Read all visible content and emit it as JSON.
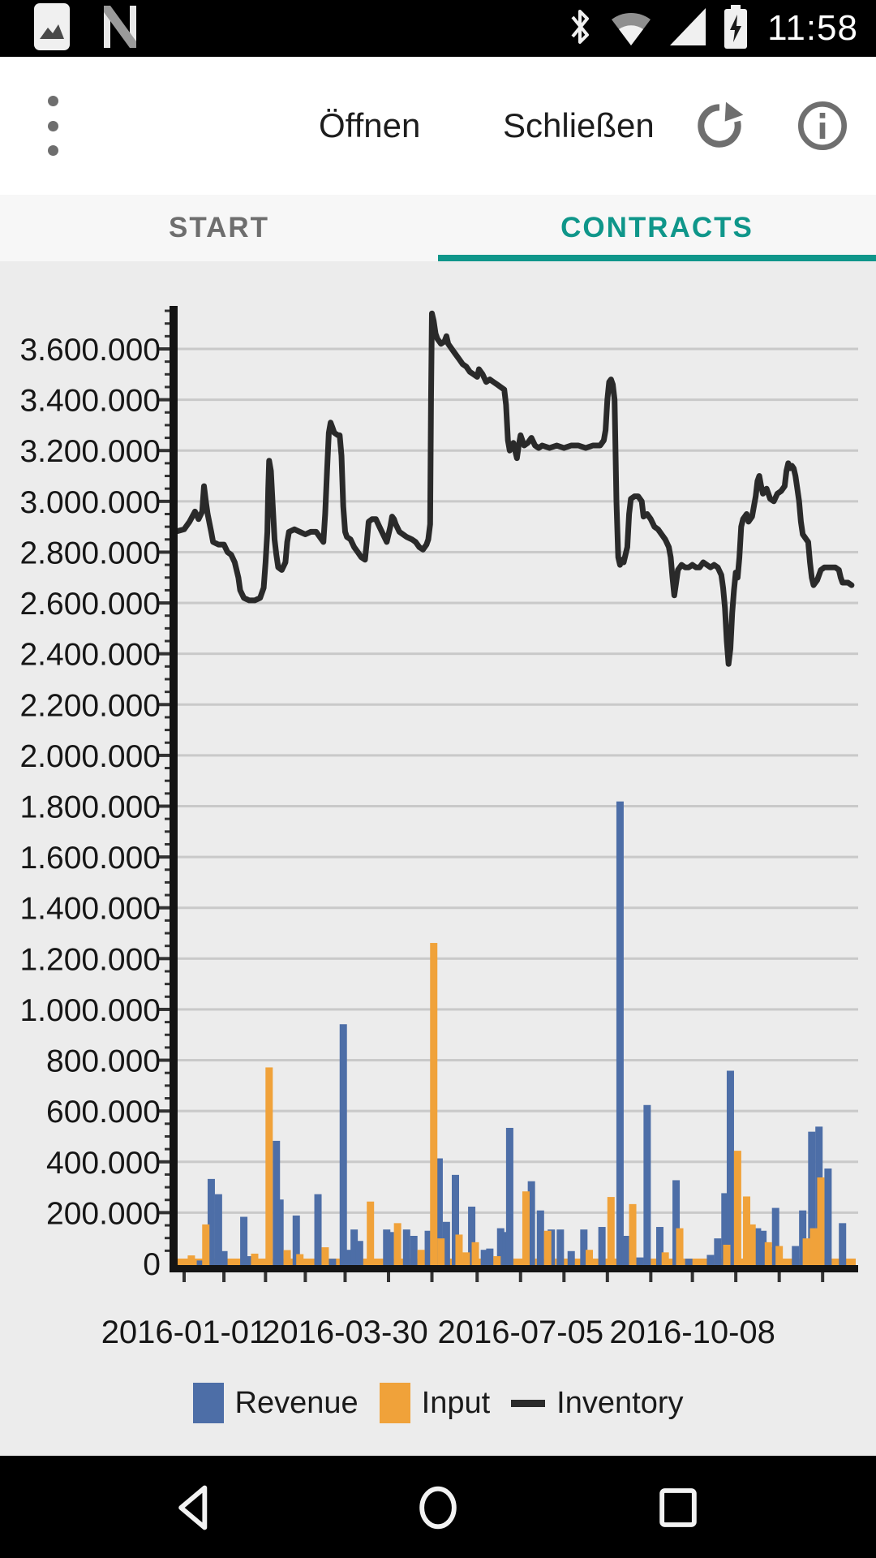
{
  "status_bar": {
    "time": "11:58",
    "left_icons": [
      "screenshot-notification",
      "android-n-notification"
    ],
    "right_icons": [
      "bluetooth",
      "wifi",
      "cell-signal",
      "battery-charging"
    ]
  },
  "toolbar": {
    "open_label": "Öffnen",
    "close_label": "Schließen",
    "icons": [
      "overflow-menu",
      "refresh",
      "info"
    ]
  },
  "tabs": {
    "accent_color": "#0f968a",
    "items": [
      {
        "label": "START",
        "active": false
      },
      {
        "label": "CONTRACTS",
        "active": true
      }
    ]
  },
  "legend": {
    "items": [
      {
        "label": "Revenue",
        "color": "#4d6ea7",
        "type": "bar"
      },
      {
        "label": "Input",
        "color": "#f0a23a",
        "type": "bar"
      },
      {
        "label": "Inventory",
        "color": "#2a2a2a",
        "type": "line"
      }
    ]
  },
  "navigation_bar": {
    "icons": [
      "back",
      "home",
      "recents"
    ]
  },
  "chart_data": {
    "type": "bar+line combo",
    "background": "#ececec",
    "grid": true,
    "colors": {
      "revenue": "#4d6ea7",
      "input": "#f0a23a",
      "inventory": "#2a2a2a",
      "gridline": "#c9c9c9",
      "axis": "#141414"
    },
    "y_axis": {
      "min": 0,
      "max_k": 3750,
      "tick_step_k": 200,
      "minor_step_k": 50,
      "labels": [
        {
          "v": 0,
          "label": "0"
        },
        {
          "v": 200,
          "label": "200.000"
        },
        {
          "v": 400,
          "label": "400.000"
        },
        {
          "v": 600,
          "label": "600.000"
        },
        {
          "v": 800,
          "label": "800.000"
        },
        {
          "v": 1000,
          "label": "1.000.000"
        },
        {
          "v": 1200,
          "label": "1.200.000"
        },
        {
          "v": 1400,
          "label": "1.400.000"
        },
        {
          "v": 1600,
          "label": "1.600.000"
        },
        {
          "v": 1800,
          "label": "1.800.000"
        },
        {
          "v": 2000,
          "label": "2.000.000"
        },
        {
          "v": 2200,
          "label": "2.200.000"
        },
        {
          "v": 2400,
          "label": "2.400.000"
        },
        {
          "v": 2600,
          "label": "2.600.000"
        },
        {
          "v": 2800,
          "label": "2.800.000"
        },
        {
          "v": 3000,
          "label": "3.000.000"
        },
        {
          "v": 3200,
          "label": "3.200.000"
        },
        {
          "v": 3400,
          "label": "3.400.000"
        },
        {
          "v": 3600,
          "label": "3.600.000"
        }
      ]
    },
    "x_axis": {
      "unit": "day offset from 2016-01-01",
      "labels": [
        {
          "day": 0,
          "label": "2016-01-01"
        },
        {
          "day": 89,
          "label": "2016-03-30"
        },
        {
          "day": 186,
          "label": "2016-07-05"
        },
        {
          "day": 281,
          "label": "2016-10-08"
        }
      ],
      "ticks": [
        0,
        22,
        45,
        67,
        89,
        113,
        137,
        162,
        186,
        210,
        234,
        258,
        281,
        305,
        329,
        353
      ]
    },
    "series": {
      "revenue_k": [
        [
          9,
          18
        ],
        [
          15,
          339
        ],
        [
          19,
          279
        ],
        [
          22,
          55
        ],
        [
          33,
          190
        ],
        [
          36,
          35
        ],
        [
          51,
          489
        ],
        [
          53,
          258
        ],
        [
          62,
          195
        ],
        [
          74,
          279
        ],
        [
          82,
          25
        ],
        [
          88,
          948
        ],
        [
          91,
          60
        ],
        [
          94,
          140
        ],
        [
          97,
          95
        ],
        [
          112,
          140
        ],
        [
          114,
          130
        ],
        [
          123,
          140
        ],
        [
          127,
          115
        ],
        [
          135,
          135
        ],
        [
          141,
          420
        ],
        [
          145,
          170
        ],
        [
          150,
          355
        ],
        [
          159,
          230
        ],
        [
          166,
          60
        ],
        [
          169,
          65
        ],
        [
          175,
          145
        ],
        [
          178,
          130
        ],
        [
          180,
          540
        ],
        [
          192,
          330
        ],
        [
          197,
          215
        ],
        [
          203,
          140
        ],
        [
          208,
          140
        ],
        [
          214,
          55
        ],
        [
          221,
          140
        ],
        [
          231,
          150
        ],
        [
          241,
          1825
        ],
        [
          244,
          115
        ],
        [
          252,
          30
        ],
        [
          256,
          630
        ],
        [
          263,
          150
        ],
        [
          272,
          334
        ],
        [
          279,
          25
        ],
        [
          291,
          40
        ],
        [
          295,
          105
        ],
        [
          299,
          283
        ],
        [
          302,
          765
        ],
        [
          317,
          145
        ],
        [
          320,
          135
        ],
        [
          325,
          70
        ],
        [
          327,
          225
        ],
        [
          338,
          75
        ],
        [
          342,
          215
        ],
        [
          347,
          525
        ],
        [
          351,
          545
        ],
        [
          356,
          380
        ],
        [
          364,
          165
        ]
      ],
      "input_k": [
        [
          4,
          38
        ],
        [
          12,
          160
        ],
        [
          27,
          25
        ],
        [
          39,
          45
        ],
        [
          47,
          778
        ],
        [
          57,
          59
        ],
        [
          64,
          43
        ],
        [
          78,
          70
        ],
        [
          103,
          250
        ],
        [
          118,
          165
        ],
        [
          131,
          60
        ],
        [
          138,
          1268
        ],
        [
          142,
          105
        ],
        [
          152,
          120
        ],
        [
          156,
          50
        ],
        [
          161,
          90
        ],
        [
          173,
          35
        ],
        [
          189,
          290
        ],
        [
          201,
          135
        ],
        [
          224,
          60
        ],
        [
          236,
          268
        ],
        [
          248,
          240
        ],
        [
          266,
          50
        ],
        [
          274,
          145
        ],
        [
          300,
          80
        ],
        [
          306,
          450
        ],
        [
          311,
          270
        ],
        [
          314,
          160
        ],
        [
          323,
          90
        ],
        [
          329,
          75
        ],
        [
          344,
          105
        ],
        [
          348,
          145
        ],
        [
          352,
          345
        ]
      ],
      "inventory_m": [
        [
          -5,
          2.88
        ],
        [
          0,
          2.89
        ],
        [
          3,
          2.92
        ],
        [
          6,
          2.96
        ],
        [
          8,
          2.93
        ],
        [
          10,
          2.96
        ],
        [
          11,
          3.06
        ],
        [
          12,
          3.0
        ],
        [
          13,
          2.95
        ],
        [
          15,
          2.88
        ],
        [
          16,
          2.84
        ],
        [
          19,
          2.83
        ],
        [
          22,
          2.83
        ],
        [
          24,
          2.8
        ],
        [
          26,
          2.79
        ],
        [
          28,
          2.76
        ],
        [
          30,
          2.7
        ],
        [
          31,
          2.65
        ],
        [
          33,
          2.62
        ],
        [
          36,
          2.61
        ],
        [
          39,
          2.61
        ],
        [
          42,
          2.62
        ],
        [
          44,
          2.66
        ],
        [
          45,
          2.76
        ],
        [
          46,
          2.88
        ],
        [
          46.5,
          3.05
        ],
        [
          47,
          3.16
        ],
        [
          48,
          3.12
        ],
        [
          49,
          2.98
        ],
        [
          50,
          2.85
        ],
        [
          51,
          2.79
        ],
        [
          52,
          2.74
        ],
        [
          54,
          2.73
        ],
        [
          56,
          2.76
        ],
        [
          57,
          2.84
        ],
        [
          58,
          2.88
        ],
        [
          61,
          2.89
        ],
        [
          64,
          2.88
        ],
        [
          67,
          2.87
        ],
        [
          70,
          2.88
        ],
        [
          73,
          2.88
        ],
        [
          75,
          2.86
        ],
        [
          77,
          2.84
        ],
        [
          78,
          2.95
        ],
        [
          79,
          3.12
        ],
        [
          80,
          3.27
        ],
        [
          81,
          3.31
        ],
        [
          82,
          3.29
        ],
        [
          83,
          3.27
        ],
        [
          85,
          3.26
        ],
        [
          86,
          3.26
        ],
        [
          87,
          3.18
        ],
        [
          88,
          2.98
        ],
        [
          89,
          2.88
        ],
        [
          90,
          2.86
        ],
        [
          92,
          2.85
        ],
        [
          94,
          2.82
        ],
        [
          96,
          2.8
        ],
        [
          98,
          2.78
        ],
        [
          100,
          2.77
        ],
        [
          101,
          2.84
        ],
        [
          102,
          2.92
        ],
        [
          104,
          2.93
        ],
        [
          106,
          2.93
        ],
        [
          108,
          2.9
        ],
        [
          110,
          2.87
        ],
        [
          112,
          2.84
        ],
        [
          114,
          2.9
        ],
        [
          115,
          2.94
        ],
        [
          116,
          2.93
        ],
        [
          117,
          2.91
        ],
        [
          119,
          2.88
        ],
        [
          121,
          2.87
        ],
        [
          123,
          2.86
        ],
        [
          126,
          2.85
        ],
        [
          128,
          2.84
        ],
        [
          130,
          2.82
        ],
        [
          132,
          2.81
        ],
        [
          134,
          2.83
        ],
        [
          135,
          2.85
        ],
        [
          136,
          2.91
        ],
        [
          136.5,
          3.4
        ],
        [
          137,
          3.74
        ],
        [
          138,
          3.71
        ],
        [
          139,
          3.66
        ],
        [
          140,
          3.64
        ],
        [
          142,
          3.62
        ],
        [
          144,
          3.63
        ],
        [
          145,
          3.65
        ],
        [
          146,
          3.62
        ],
        [
          148,
          3.6
        ],
        [
          150,
          3.58
        ],
        [
          152,
          3.56
        ],
        [
          154,
          3.54
        ],
        [
          156,
          3.53
        ],
        [
          158,
          3.51
        ],
        [
          160,
          3.5
        ],
        [
          162,
          3.49
        ],
        [
          163,
          3.52
        ],
        [
          165,
          3.5
        ],
        [
          167,
          3.47
        ],
        [
          169,
          3.48
        ],
        [
          171,
          3.47
        ],
        [
          173,
          3.46
        ],
        [
          175,
          3.45
        ],
        [
          177,
          3.44
        ],
        [
          178,
          3.38
        ],
        [
          179,
          3.24
        ],
        [
          180,
          3.2
        ],
        [
          182,
          3.23
        ],
        [
          184,
          3.17
        ],
        [
          185,
          3.22
        ],
        [
          186,
          3.26
        ],
        [
          188,
          3.22
        ],
        [
          190,
          3.23
        ],
        [
          192,
          3.25
        ],
        [
          194,
          3.22
        ],
        [
          196,
          3.21
        ],
        [
          198,
          3.22
        ],
        [
          202,
          3.21
        ],
        [
          206,
          3.22
        ],
        [
          210,
          3.21
        ],
        [
          214,
          3.22
        ],
        [
          218,
          3.22
        ],
        [
          222,
          3.21
        ],
        [
          226,
          3.22
        ],
        [
          230,
          3.22
        ],
        [
          232,
          3.24
        ],
        [
          233,
          3.28
        ],
        [
          234,
          3.4
        ],
        [
          235,
          3.47
        ],
        [
          236,
          3.48
        ],
        [
          237,
          3.46
        ],
        [
          238,
          3.4
        ],
        [
          239,
          3.0
        ],
        [
          240,
          2.78
        ],
        [
          241,
          2.75
        ],
        [
          242,
          2.77
        ],
        [
          243,
          2.76
        ],
        [
          245,
          2.82
        ],
        [
          246,
          2.95
        ],
        [
          247,
          3.01
        ],
        [
          249,
          3.02
        ],
        [
          251,
          3.02
        ],
        [
          253,
          3.0
        ],
        [
          254,
          2.94
        ],
        [
          256,
          2.95
        ],
        [
          258,
          2.93
        ],
        [
          260,
          2.9
        ],
        [
          262,
          2.89
        ],
        [
          264,
          2.87
        ],
        [
          266,
          2.85
        ],
        [
          268,
          2.82
        ],
        [
          269,
          2.78
        ],
        [
          270,
          2.7
        ],
        [
          271,
          2.63
        ],
        [
          272,
          2.68
        ],
        [
          273,
          2.73
        ],
        [
          275,
          2.75
        ],
        [
          277,
          2.74
        ],
        [
          279,
          2.74
        ],
        [
          281,
          2.75
        ],
        [
          283,
          2.74
        ],
        [
          285,
          2.74
        ],
        [
          287,
          2.76
        ],
        [
          289,
          2.75
        ],
        [
          291,
          2.74
        ],
        [
          293,
          2.75
        ],
        [
          295,
          2.74
        ],
        [
          297,
          2.71
        ],
        [
          298,
          2.66
        ],
        [
          299,
          2.58
        ],
        [
          300,
          2.45
        ],
        [
          301,
          2.36
        ],
        [
          302,
          2.42
        ],
        [
          303,
          2.56
        ],
        [
          304,
          2.65
        ],
        [
          305,
          2.72
        ],
        [
          306,
          2.7
        ],
        [
          307,
          2.78
        ],
        [
          308,
          2.9
        ],
        [
          309,
          2.93
        ],
        [
          311,
          2.95
        ],
        [
          312,
          2.92
        ],
        [
          314,
          2.94
        ],
        [
          316,
          3.02
        ],
        [
          317,
          3.08
        ],
        [
          318,
          3.1
        ],
        [
          319,
          3.06
        ],
        [
          320,
          3.03
        ],
        [
          322,
          3.05
        ],
        [
          324,
          3.01
        ],
        [
          326,
          3.0
        ],
        [
          328,
          3.03
        ],
        [
          330,
          3.04
        ],
        [
          332,
          3.06
        ],
        [
          333,
          3.12
        ],
        [
          334,
          3.15
        ],
        [
          335,
          3.13
        ],
        [
          336,
          3.14
        ],
        [
          337,
          3.13
        ],
        [
          338,
          3.1
        ],
        [
          339,
          3.05
        ],
        [
          340,
          3.0
        ],
        [
          341,
          2.92
        ],
        [
          342,
          2.87
        ],
        [
          344,
          2.85
        ],
        [
          345,
          2.84
        ],
        [
          346,
          2.76
        ],
        [
          347,
          2.7
        ],
        [
          348,
          2.67
        ],
        [
          350,
          2.69
        ],
        [
          352,
          2.73
        ],
        [
          354,
          2.74
        ],
        [
          356,
          2.74
        ],
        [
          358,
          2.74
        ],
        [
          360,
          2.74
        ],
        [
          362,
          2.73
        ],
        [
          363,
          2.7
        ],
        [
          364,
          2.68
        ],
        [
          367,
          2.68
        ],
        [
          369,
          2.67
        ]
      ]
    }
  }
}
